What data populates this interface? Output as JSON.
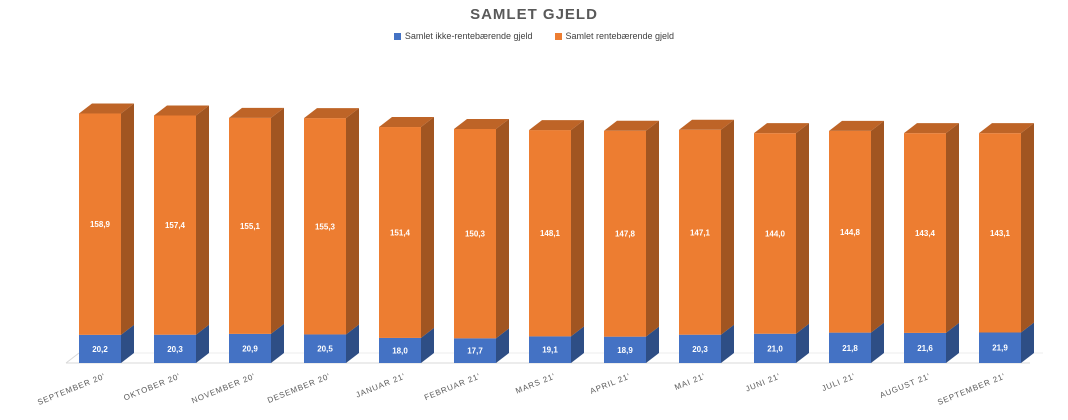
{
  "chart_data": {
    "type": "bar",
    "stacked": true,
    "style": "3d-columns",
    "title": "SAMLET GJELD",
    "xlabel": "",
    "ylabel": "",
    "legend_position": "top-center",
    "grid": false,
    "categories": [
      "SEPTEMBER 20'",
      "OKTOBER 20'",
      "NOVEMBER 20'",
      "DESEMBER 20'",
      "JANUAR 21'",
      "FEBRUAR 21'",
      "MARS 21'",
      "APRIL 21'",
      "MAI 21'",
      "JUNI 21'",
      "JULI 21'",
      "AUGUST 21'",
      "SEPTEMBER 21'"
    ],
    "series": [
      {
        "name": "Samlet ikke-rentebærende gjeld",
        "color": "#4472C4",
        "values": [
          20.2,
          20.3,
          20.9,
          20.5,
          18.0,
          17.7,
          19.1,
          18.9,
          20.3,
          21.0,
          21.8,
          21.6,
          21.9
        ],
        "labels": [
          "20,2",
          "20,3",
          "20,9",
          "20,5",
          "18,0",
          "17,7",
          "19,1",
          "18,9",
          "20,3",
          "21,0",
          "21,8",
          "21,6",
          "21,9"
        ]
      },
      {
        "name": "Samlet rentebærende gjeld",
        "color": "#ED7D31",
        "values": [
          158.9,
          157.4,
          155.1,
          155.3,
          151.4,
          150.3,
          148.1,
          147.8,
          147.1,
          144.0,
          144.8,
          143.4,
          143.1
        ],
        "labels": [
          "158,9",
          "157,4",
          "155,1",
          "155,3",
          "151,4",
          "150,3",
          "148,1",
          "147,8",
          "147,1",
          "144,0",
          "144,8",
          "143,4",
          "143,1"
        ]
      }
    ]
  }
}
